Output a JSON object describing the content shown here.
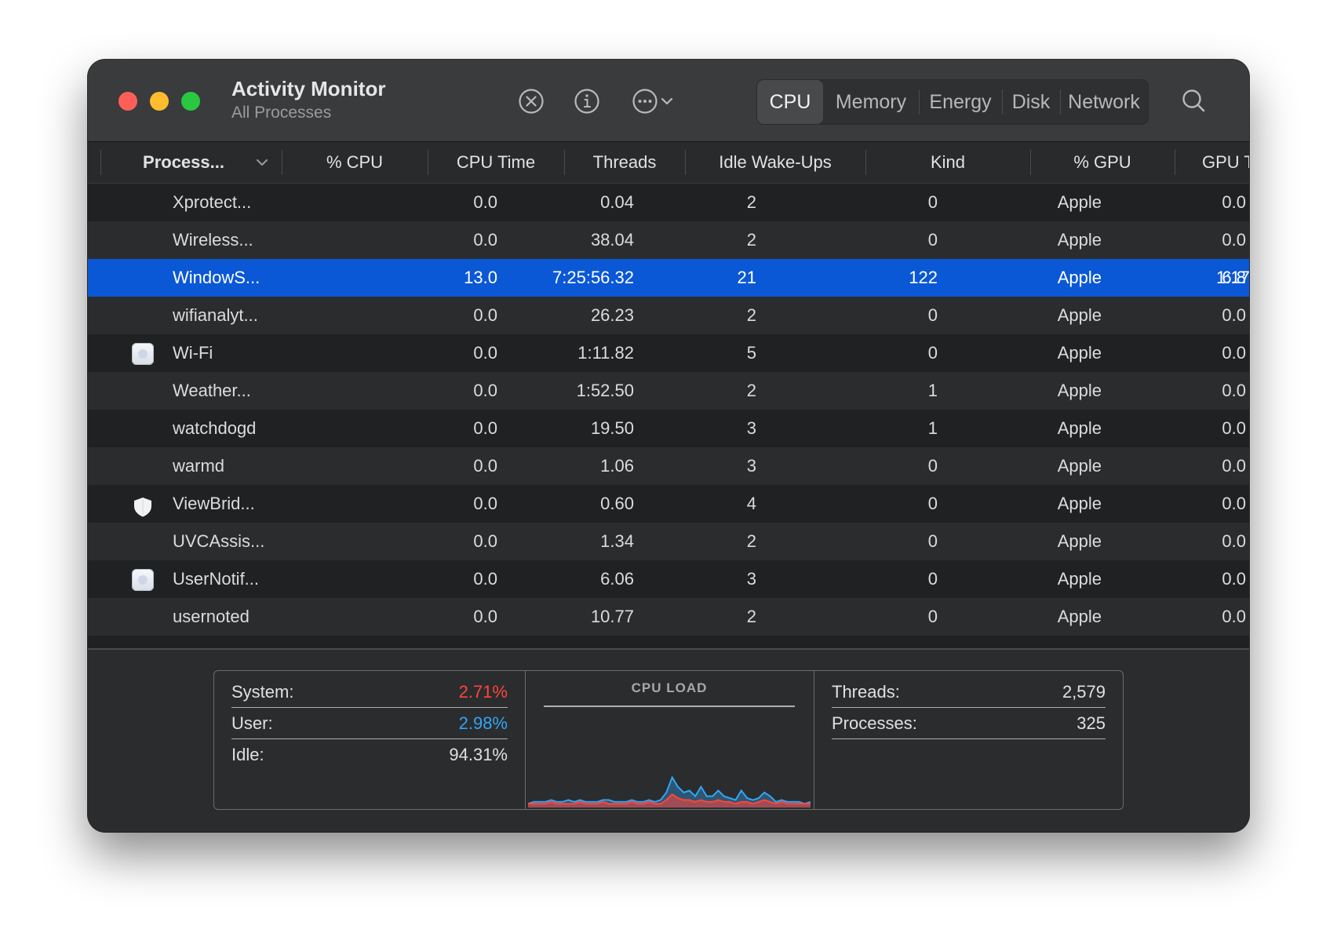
{
  "window": {
    "title": "Activity Monitor",
    "subtitle": "All Processes"
  },
  "toolbar": {
    "icons": [
      "stop-process-icon",
      "info-icon",
      "more-options-icon",
      "chevron-down-icon",
      "search-icon"
    ],
    "tabs": [
      {
        "label": "CPU",
        "active": true
      },
      {
        "label": "Memory",
        "active": false
      },
      {
        "label": "Energy",
        "active": false
      },
      {
        "label": "Disk",
        "active": false
      },
      {
        "label": "Network",
        "active": false
      }
    ]
  },
  "columns": {
    "process": "Process...",
    "cpu": "% CPU",
    "cpu_time": "CPU Time",
    "threads": "Threads",
    "idle_wakeups": "Idle Wake-Ups",
    "kind": "Kind",
    "gpu": "% GPU",
    "gpu_time": "GPU T"
  },
  "rows": [
    {
      "name": "Xprotect...",
      "cpu": "0.0",
      "cpu_time": "0.04",
      "threads": "2",
      "idle_wakeups": "0",
      "kind": "Apple",
      "gpu": "0.0",
      "gpu_time": "",
      "icon": ""
    },
    {
      "name": "Wireless...",
      "cpu": "0.0",
      "cpu_time": "38.04",
      "threads": "2",
      "idle_wakeups": "0",
      "kind": "Apple",
      "gpu": "0.0",
      "gpu_time": "",
      "icon": ""
    },
    {
      "name": "WindowS...",
      "cpu": "13.0",
      "cpu_time": "7:25:56.32",
      "threads": "21",
      "idle_wakeups": "122",
      "kind": "Apple",
      "gpu": "6.8",
      "gpu_time": "1:17",
      "icon": "",
      "selected": true
    },
    {
      "name": "wifianalyt...",
      "cpu": "0.0",
      "cpu_time": "26.23",
      "threads": "2",
      "idle_wakeups": "0",
      "kind": "Apple",
      "gpu": "0.0",
      "gpu_time": "",
      "icon": ""
    },
    {
      "name": "Wi-Fi",
      "cpu": "0.0",
      "cpu_time": "1:11.82",
      "threads": "5",
      "idle_wakeups": "0",
      "kind": "Apple",
      "gpu": "0.0",
      "gpu_time": "",
      "icon": "app-icon"
    },
    {
      "name": "Weather...",
      "cpu": "0.0",
      "cpu_time": "1:52.50",
      "threads": "2",
      "idle_wakeups": "1",
      "kind": "Apple",
      "gpu": "0.0",
      "gpu_time": "",
      "icon": ""
    },
    {
      "name": "watchdogd",
      "cpu": "0.0",
      "cpu_time": "19.50",
      "threads": "3",
      "idle_wakeups": "1",
      "kind": "Apple",
      "gpu": "0.0",
      "gpu_time": "",
      "icon": ""
    },
    {
      "name": "warmd",
      "cpu": "0.0",
      "cpu_time": "1.06",
      "threads": "3",
      "idle_wakeups": "0",
      "kind": "Apple",
      "gpu": "0.0",
      "gpu_time": "",
      "icon": ""
    },
    {
      "name": "ViewBrid...",
      "cpu": "0.0",
      "cpu_time": "0.60",
      "threads": "4",
      "idle_wakeups": "0",
      "kind": "Apple",
      "gpu": "0.0",
      "gpu_time": "",
      "icon": "shield-icon"
    },
    {
      "name": "UVCAssis...",
      "cpu": "0.0",
      "cpu_time": "1.34",
      "threads": "2",
      "idle_wakeups": "0",
      "kind": "Apple",
      "gpu": "0.0",
      "gpu_time": "",
      "icon": ""
    },
    {
      "name": "UserNotif...",
      "cpu": "0.0",
      "cpu_time": "6.06",
      "threads": "3",
      "idle_wakeups": "0",
      "kind": "Apple",
      "gpu": "0.0",
      "gpu_time": "",
      "icon": "app-icon"
    },
    {
      "name": "usernoted",
      "cpu": "0.0",
      "cpu_time": "10.77",
      "threads": "2",
      "idle_wakeups": "0",
      "kind": "Apple",
      "gpu": "0.0",
      "gpu_time": "",
      "icon": ""
    }
  ],
  "stats": {
    "system_label": "System:",
    "system_value": "2.71%",
    "user_label": "User:",
    "user_value": "2.98%",
    "idle_label": "Idle:",
    "idle_value": "94.31%",
    "cpu_load_title": "CPU LOAD",
    "threads_label": "Threads:",
    "threads_value": "2,579",
    "processes_label": "Processes:",
    "processes_value": "325"
  },
  "cpu_load_graph": {
    "system_series": [
      2,
      2,
      2,
      2,
      3,
      2,
      2,
      2,
      2,
      3,
      2,
      2,
      2,
      3,
      2,
      2,
      2,
      2,
      3,
      2,
      2,
      3,
      2,
      2,
      4,
      7,
      5,
      4,
      4,
      3,
      4,
      3,
      3,
      4,
      3,
      3,
      2,
      3,
      3,
      2,
      3,
      4,
      3,
      2,
      3,
      2,
      2,
      2,
      2,
      2
    ],
    "user_series": [
      2,
      3,
      3,
      3,
      4,
      3,
      3,
      4,
      3,
      4,
      3,
      3,
      3,
      4,
      4,
      3,
      3,
      3,
      4,
      3,
      3,
      4,
      3,
      4,
      8,
      16,
      11,
      8,
      9,
      6,
      11,
      6,
      6,
      9,
      6,
      5,
      4,
      9,
      5,
      4,
      5,
      8,
      6,
      3,
      4,
      3,
      3,
      3,
      2,
      3
    ]
  },
  "colors": {
    "selection": "#0a58d6",
    "system": "#ff453a",
    "user": "#32a5f5"
  }
}
